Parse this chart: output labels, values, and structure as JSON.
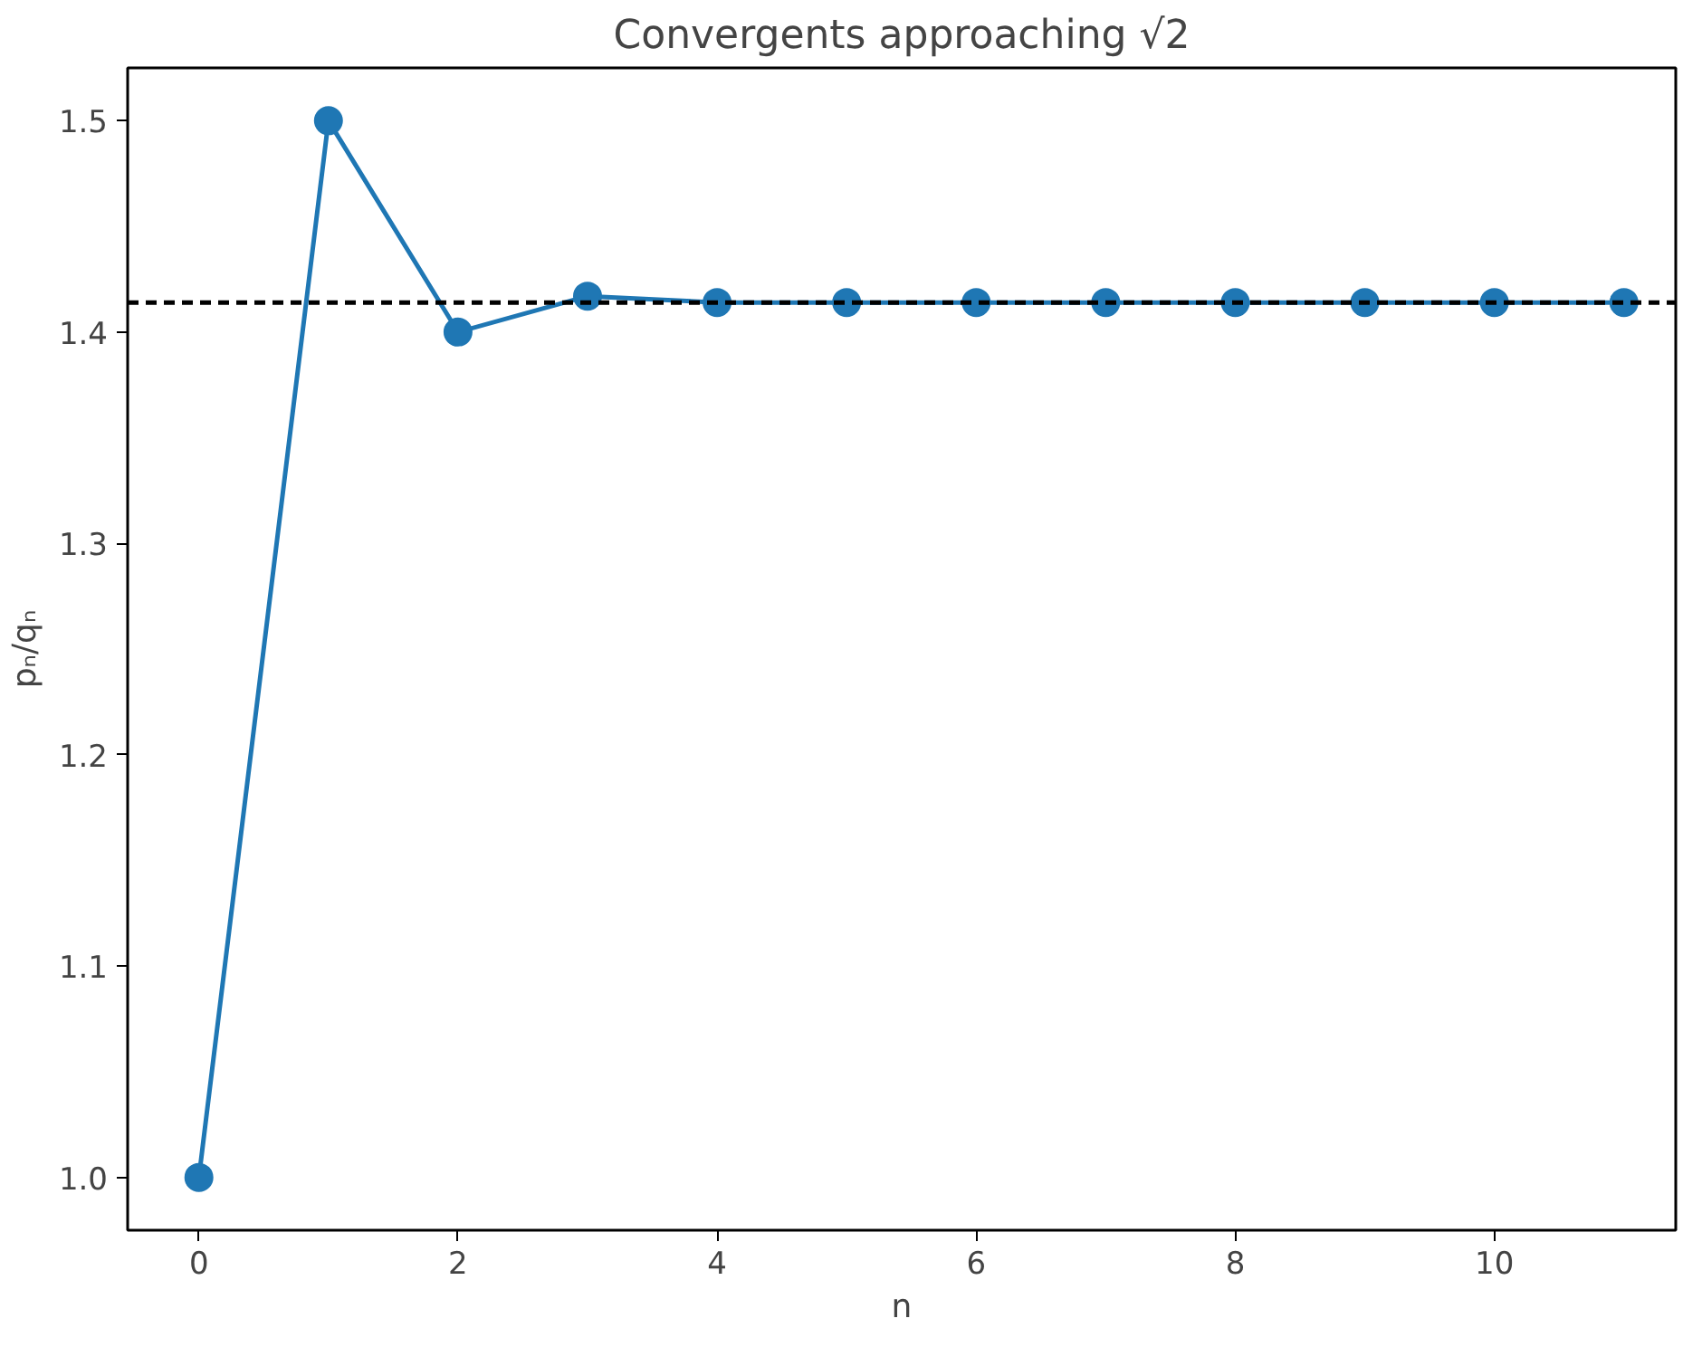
{
  "chart_data": {
    "type": "line",
    "title": "Convergents approaching √2",
    "xlabel": "n",
    "ylabel": "pₙ/qₙ",
    "x": [
      0,
      1,
      2,
      3,
      4,
      5,
      6,
      7,
      8,
      9,
      10,
      11
    ],
    "series": [
      {
        "color": "#1f77b4",
        "values": [
          1.0,
          1.5,
          1.4,
          1.417,
          1.414,
          1.414,
          1.414,
          1.414,
          1.414,
          1.414,
          1.414,
          1.414
        ]
      }
    ],
    "xlim": [
      -0.55,
      11.4
    ],
    "ylim": [
      0.975,
      1.525
    ],
    "xticks": [
      0,
      2,
      4,
      6,
      8,
      10
    ],
    "yticks": [
      {
        "value": 1.0,
        "label": "1.0"
      },
      {
        "value": 1.1,
        "label": "1.1"
      },
      {
        "value": 1.2,
        "label": "1.2"
      },
      {
        "value": 1.3,
        "label": "1.3"
      },
      {
        "value": 1.4,
        "label": "1.4"
      },
      {
        "value": 1.5,
        "label": "1.5"
      }
    ],
    "ref_lines": [
      {
        "axis": "y",
        "value": 1.414,
        "color": "#000000",
        "line_style": "dashed"
      }
    ],
    "grid": false,
    "marker": "circle",
    "line_style": "solid"
  }
}
